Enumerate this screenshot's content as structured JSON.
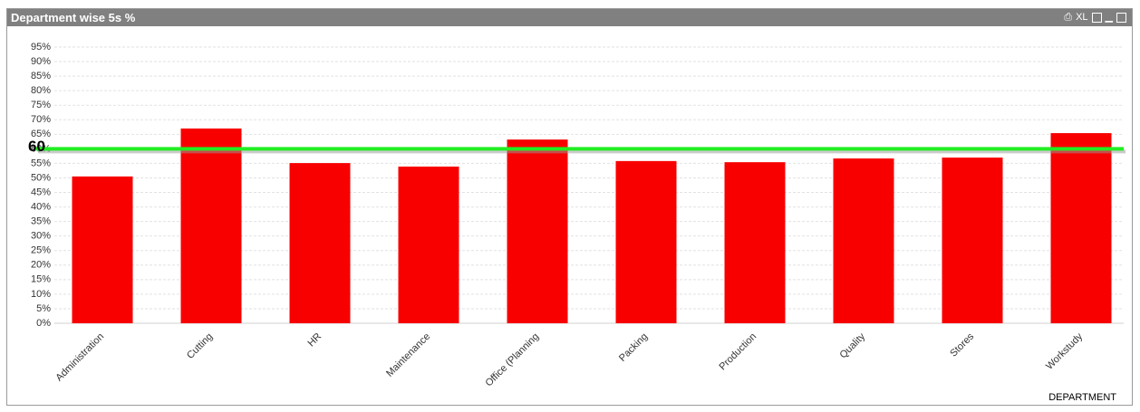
{
  "window_title": "Department wise 5s %",
  "toolbar_label": "XL",
  "chart_data": {
    "type": "bar",
    "categories": [
      "Administration",
      "Cutting",
      "HR",
      "Maintenance",
      "Office (Planning",
      "Packing",
      "Production",
      "Quality",
      "Stores",
      "Workstudy"
    ],
    "values": [
      50.5,
      67.0,
      55.1,
      53.9,
      63.2,
      55.8,
      55.4,
      56.7,
      57.0,
      65.4
    ],
    "color": "#f80000",
    "x_label": "DEPARTMENT",
    "ylim": [
      0,
      95
    ],
    "yticks": [
      {
        "value": 0,
        "label": "0%"
      },
      {
        "value": 5,
        "label": "5%"
      },
      {
        "value": 10,
        "label": "10%"
      },
      {
        "value": 15,
        "label": "15%"
      },
      {
        "value": 20,
        "label": "20%"
      },
      {
        "value": 25,
        "label": "25%"
      },
      {
        "value": 30,
        "label": "30%"
      },
      {
        "value": 35,
        "label": "35%"
      },
      {
        "value": 40,
        "label": "40%"
      },
      {
        "value": 45,
        "label": "45%"
      },
      {
        "value": 50,
        "label": "50%"
      },
      {
        "value": 55,
        "label": "55%"
      },
      {
        "value": 60,
        "label": "60%"
      },
      {
        "value": 65,
        "label": "65%"
      },
      {
        "value": 70,
        "label": "70%"
      },
      {
        "value": 75,
        "label": "75%"
      },
      {
        "value": 80,
        "label": "80%"
      },
      {
        "value": 85,
        "label": "85%"
      },
      {
        "value": 90,
        "label": "90%"
      },
      {
        "value": 95,
        "label": "95%"
      }
    ],
    "grid": true,
    "reference_line": 60,
    "reference_color": "#22ee22"
  }
}
